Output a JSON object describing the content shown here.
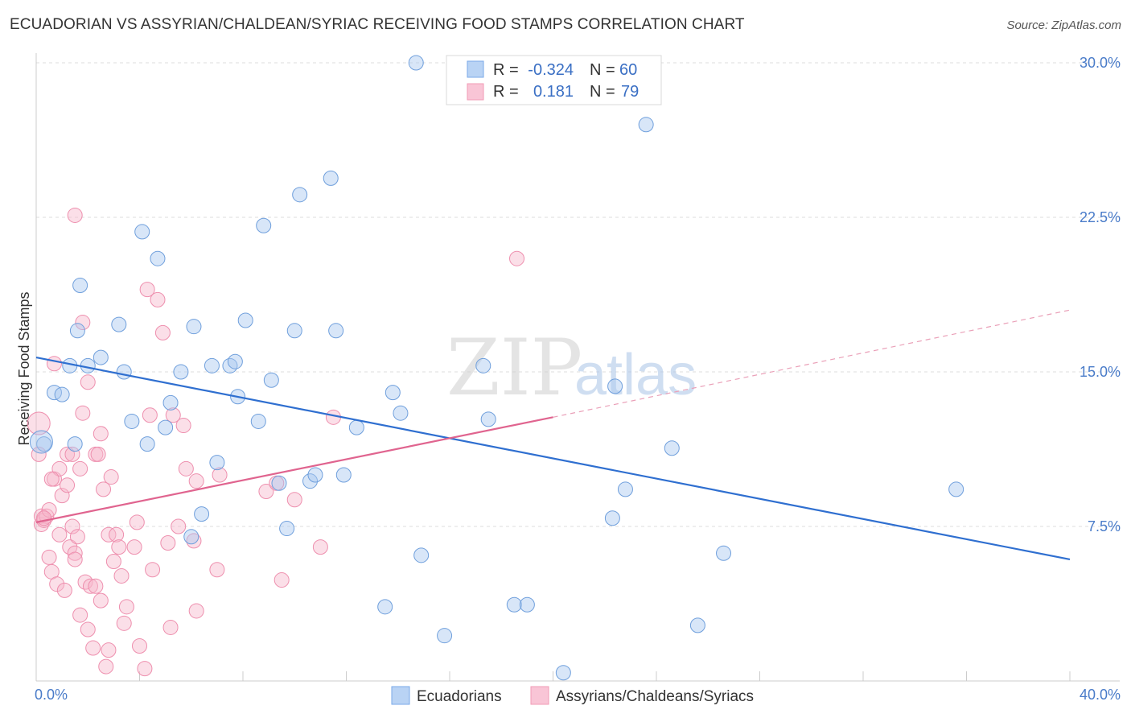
{
  "title": "ECUADORIAN VS ASSYRIAN/CHALDEAN/SYRIAC RECEIVING FOOD STAMPS CORRELATION CHART",
  "source": "Source: ZipAtlas.com",
  "watermark": {
    "zip": "ZIP",
    "atlas": "atlas"
  },
  "legend_box": {
    "r_label": "R =",
    "n_label": "N =",
    "rows": [
      {
        "r": "-0.324",
        "n": "60"
      },
      {
        "r": "0.181",
        "n": "79"
      }
    ]
  },
  "chart_data": {
    "type": "scatter",
    "title": "ECUADORIAN VS ASSYRIAN/CHALDEAN/SYRIAC RECEIVING FOOD STAMPS CORRELATION CHART",
    "ylabel": "Receiving Food Stamps",
    "xlim": [
      0,
      40
    ],
    "ylim": [
      0,
      30.5
    ],
    "x_tick_labels": [
      "0.0%",
      "40.0%"
    ],
    "y_ticks": [
      7.5,
      15.0,
      22.5,
      30.0
    ],
    "y_tick_labels": [
      "7.5%",
      "15.0%",
      "22.5%",
      "30.0%"
    ],
    "grid": true,
    "colors": {
      "Ecuadorians": "#7aaae8",
      "Assyrians/Chaldeans/Syriacs": "#f19bb6",
      "blue_line": "#2f6fd0",
      "pink_line": "#e0648f"
    },
    "series": [
      {
        "name": "Ecuadorians",
        "r": -0.324,
        "n": 60,
        "trend": {
          "x0": 0.0,
          "y0": 15.7,
          "x1": 40.0,
          "y1": 5.9
        },
        "points": [
          [
            0.3,
            11.5
          ],
          [
            0.7,
            14.0
          ],
          [
            1.0,
            13.9
          ],
          [
            1.3,
            15.3
          ],
          [
            1.6,
            17.0
          ],
          [
            1.7,
            19.2
          ],
          [
            2.0,
            15.3
          ],
          [
            2.5,
            15.7
          ],
          [
            3.2,
            17.3
          ],
          [
            3.4,
            15.0
          ],
          [
            3.7,
            12.6
          ],
          [
            4.1,
            21.8
          ],
          [
            4.3,
            11.5
          ],
          [
            4.7,
            20.5
          ],
          [
            5.0,
            12.3
          ],
          [
            5.2,
            13.5
          ],
          [
            5.6,
            15.0
          ],
          [
            6.0,
            7.0
          ],
          [
            6.1,
            17.2
          ],
          [
            6.4,
            8.1
          ],
          [
            6.8,
            15.3
          ],
          [
            7.0,
            10.6
          ],
          [
            7.5,
            15.3
          ],
          [
            7.7,
            15.5
          ],
          [
            7.8,
            13.8
          ],
          [
            8.1,
            17.5
          ],
          [
            8.6,
            12.6
          ],
          [
            8.8,
            22.1
          ],
          [
            9.1,
            14.6
          ],
          [
            9.4,
            9.6
          ],
          [
            9.7,
            7.4
          ],
          [
            10.0,
            17.0
          ],
          [
            10.2,
            23.6
          ],
          [
            10.6,
            9.7
          ],
          [
            10.8,
            10.0
          ],
          [
            11.4,
            24.4
          ],
          [
            11.6,
            17.0
          ],
          [
            11.9,
            10.0
          ],
          [
            12.4,
            12.3
          ],
          [
            13.5,
            3.6
          ],
          [
            13.8,
            14.0
          ],
          [
            14.1,
            13.0
          ],
          [
            14.7,
            30.0
          ],
          [
            14.9,
            6.1
          ],
          [
            15.8,
            2.2
          ],
          [
            17.3,
            15.3
          ],
          [
            17.5,
            12.7
          ],
          [
            18.5,
            3.7
          ],
          [
            19.0,
            3.7
          ],
          [
            20.4,
            0.4
          ],
          [
            22.3,
            7.9
          ],
          [
            22.4,
            14.3
          ],
          [
            22.8,
            9.3
          ],
          [
            23.6,
            27.0
          ],
          [
            24.6,
            11.3
          ],
          [
            25.6,
            2.7
          ],
          [
            26.6,
            6.2
          ],
          [
            35.6,
            9.3
          ],
          [
            0.2,
            11.6
          ],
          [
            1.5,
            11.5
          ]
        ]
      },
      {
        "name": "Assyrians/Chaldeans/Syriacs",
        "r": 0.181,
        "n": 79,
        "trend": {
          "x0": 0.0,
          "y0": 7.7,
          "x1": 20.0,
          "y1": 12.8,
          "dash_x1": 40.0,
          "dash_y1": 18.0
        },
        "points": [
          [
            0.1,
            12.5
          ],
          [
            0.1,
            11.0
          ],
          [
            0.2,
            7.6
          ],
          [
            0.2,
            8.0
          ],
          [
            0.3,
            7.8
          ],
          [
            0.4,
            8.0
          ],
          [
            0.5,
            8.3
          ],
          [
            0.5,
            6.0
          ],
          [
            0.6,
            5.3
          ],
          [
            0.7,
            9.8
          ],
          [
            0.7,
            15.4
          ],
          [
            0.8,
            4.7
          ],
          [
            0.9,
            7.1
          ],
          [
            0.9,
            10.3
          ],
          [
            1.0,
            9.0
          ],
          [
            1.1,
            4.4
          ],
          [
            1.2,
            11.0
          ],
          [
            1.2,
            9.5
          ],
          [
            1.3,
            6.5
          ],
          [
            1.4,
            7.5
          ],
          [
            1.4,
            11.0
          ],
          [
            1.5,
            6.2
          ],
          [
            1.5,
            5.9
          ],
          [
            1.6,
            7.0
          ],
          [
            1.7,
            3.2
          ],
          [
            1.7,
            10.3
          ],
          [
            1.8,
            17.4
          ],
          [
            1.8,
            13.0
          ],
          [
            1.9,
            4.8
          ],
          [
            2.0,
            14.5
          ],
          [
            2.0,
            2.5
          ],
          [
            2.1,
            4.6
          ],
          [
            2.2,
            1.6
          ],
          [
            2.3,
            11.0
          ],
          [
            2.3,
            4.6
          ],
          [
            2.4,
            11.0
          ],
          [
            2.5,
            12.0
          ],
          [
            2.5,
            3.9
          ],
          [
            2.6,
            9.3
          ],
          [
            2.7,
            0.7
          ],
          [
            2.8,
            7.1
          ],
          [
            2.8,
            1.5
          ],
          [
            2.9,
            9.9
          ],
          [
            3.0,
            5.8
          ],
          [
            3.1,
            7.1
          ],
          [
            3.2,
            6.5
          ],
          [
            3.3,
            5.1
          ],
          [
            3.4,
            2.8
          ],
          [
            3.5,
            3.6
          ],
          [
            3.8,
            6.5
          ],
          [
            3.9,
            7.7
          ],
          [
            4.0,
            1.7
          ],
          [
            4.2,
            0.6
          ],
          [
            4.3,
            19.0
          ],
          [
            4.4,
            12.9
          ],
          [
            4.5,
            5.4
          ],
          [
            4.7,
            18.5
          ],
          [
            4.9,
            16.9
          ],
          [
            5.1,
            6.7
          ],
          [
            5.2,
            2.6
          ],
          [
            5.3,
            12.9
          ],
          [
            5.5,
            7.5
          ],
          [
            5.7,
            12.4
          ],
          [
            5.8,
            10.3
          ],
          [
            6.1,
            6.8
          ],
          [
            6.2,
            9.7
          ],
          [
            6.2,
            3.4
          ],
          [
            7.0,
            5.4
          ],
          [
            7.1,
            10.0
          ],
          [
            8.9,
            9.2
          ],
          [
            9.3,
            9.6
          ],
          [
            9.5,
            4.9
          ],
          [
            10.0,
            8.8
          ],
          [
            11.0,
            6.5
          ],
          [
            11.5,
            12.8
          ],
          [
            18.6,
            20.5
          ],
          [
            1.5,
            22.6
          ],
          [
            0.3,
            7.9
          ],
          [
            0.6,
            9.8
          ]
        ]
      }
    ]
  },
  "bottom_legend": [
    "Ecuadorians",
    "Assyrians/Chaldeans/Syriacs"
  ]
}
